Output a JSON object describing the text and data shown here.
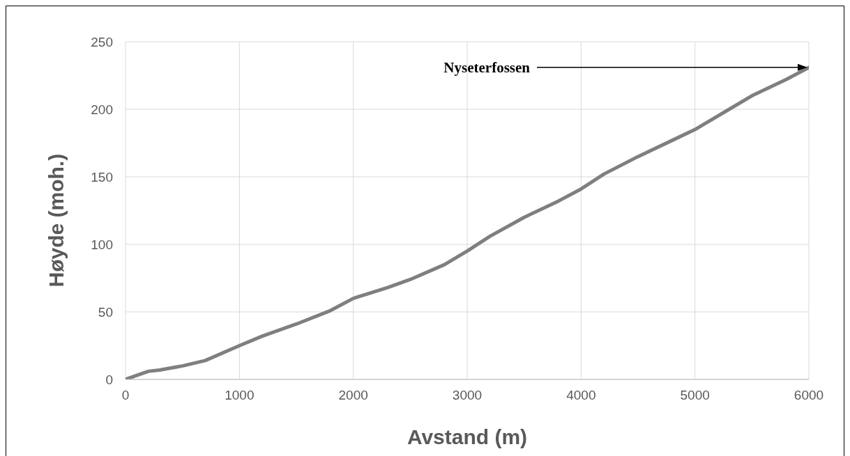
{
  "chart_data": {
    "type": "line",
    "xlabel": "Avstand (m)",
    "ylabel": "Høyde (moh.)",
    "x": [
      0,
      100,
      200,
      300,
      500,
      700,
      1000,
      1200,
      1500,
      1800,
      2000,
      2300,
      2500,
      2800,
      3000,
      3200,
      3500,
      3800,
      4000,
      4200,
      4500,
      4800,
      5000,
      5300,
      5500,
      5800,
      6000
    ],
    "series": [
      {
        "color": "#7f7f7f",
        "values": [
          0,
          3,
          6,
          7,
          10,
          14,
          25,
          32,
          41,
          51,
          60,
          68,
          74,
          85,
          95,
          106,
          120,
          132,
          141,
          152,
          165,
          177,
          185,
          200,
          210,
          222,
          231
        ]
      }
    ],
    "xlim": [
      0,
      6000
    ],
    "xticks": [
      0,
      1000,
      2000,
      3000,
      4000,
      5000,
      6000
    ],
    "ylim": [
      0,
      250
    ],
    "yticks": [
      0,
      50,
      100,
      150,
      200,
      250
    ],
    "grid": true,
    "legend": false,
    "marker": "none",
    "line_style": "solid",
    "annotations": [
      "Nyseterfossen"
    ]
  }
}
